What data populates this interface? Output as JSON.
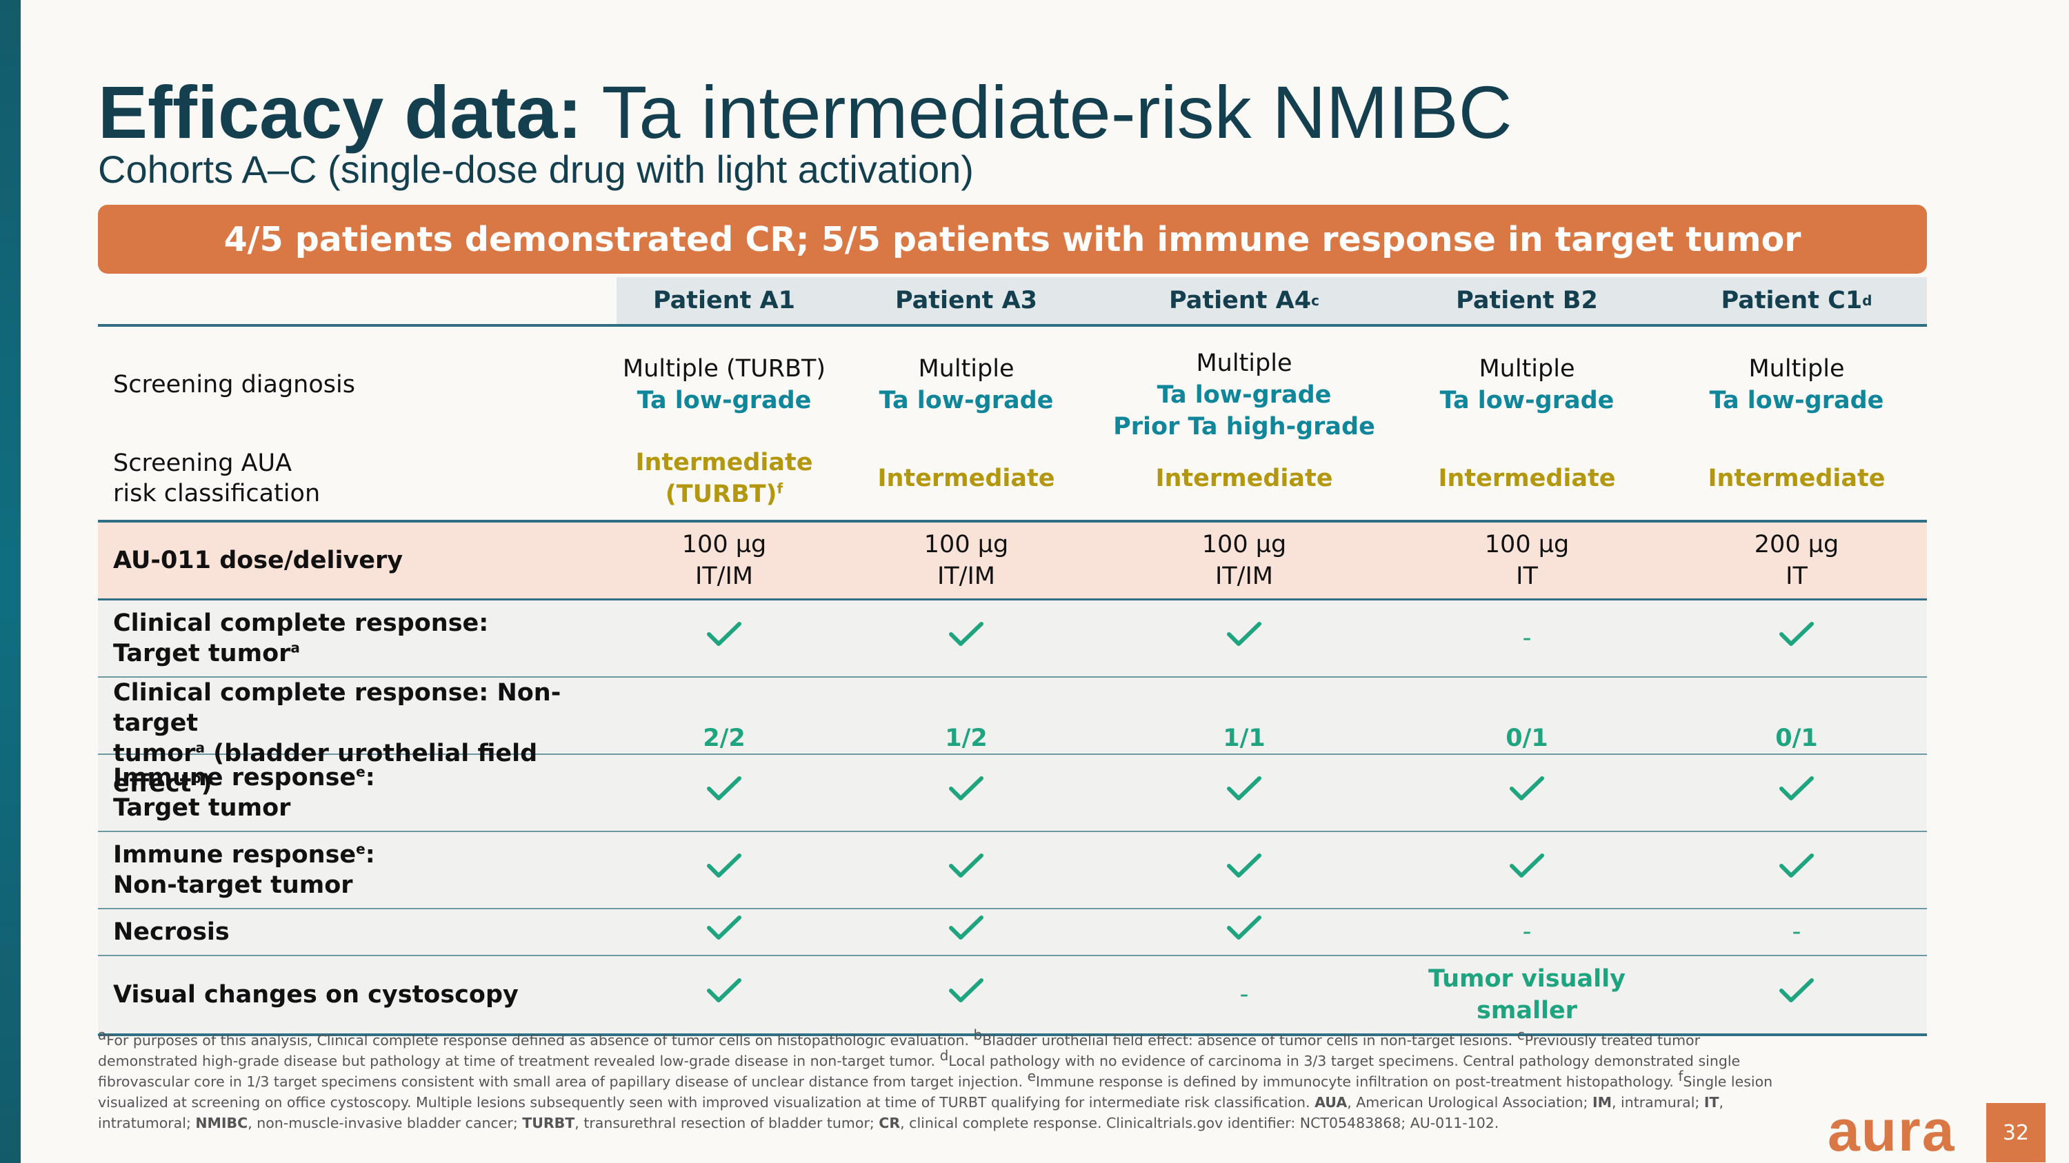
{
  "title": {
    "bold": "Efficacy data:",
    "rest": " Ta intermediate-risk NMIBC"
  },
  "subtitle": "Cohorts A–C (single-dose drug with light activation)",
  "banner": "4/5 patients demonstrated CR; 5/5 patients with immune response in target tumor",
  "patients": [
    {
      "name": "Patient A1",
      "sup": ""
    },
    {
      "name": "Patient A3",
      "sup": ""
    },
    {
      "name": "Patient A4",
      "sup": "c"
    },
    {
      "name": "Patient B2",
      "sup": ""
    },
    {
      "name": "Patient C1",
      "sup": "d"
    }
  ],
  "rows": {
    "diagnosis": {
      "label": "Screening diagnosis",
      "cells": [
        {
          "line1": "Multiple (TURBT)",
          "line2": "Ta low-grade",
          "line3": ""
        },
        {
          "line1": "Multiple",
          "line2": "Ta low-grade",
          "line3": ""
        },
        {
          "line1": "Multiple",
          "line2": "Ta low-grade",
          "line3": "Prior Ta high-grade"
        },
        {
          "line1": "Multiple",
          "line2": "Ta low-grade",
          "line3": ""
        },
        {
          "line1": "Multiple",
          "line2": "Ta low-grade",
          "line3": ""
        }
      ]
    },
    "risk": {
      "label_line1": "Screening AUA",
      "label_line2": "risk classification",
      "cells": [
        {
          "line1": "Intermediate",
          "line2": "(TURBT)",
          "sup": "f"
        },
        {
          "line1": "Intermediate",
          "line2": "",
          "sup": ""
        },
        {
          "line1": "Intermediate",
          "line2": "",
          "sup": ""
        },
        {
          "line1": "Intermediate",
          "line2": "",
          "sup": ""
        },
        {
          "line1": "Intermediate",
          "line2": "",
          "sup": ""
        }
      ]
    },
    "dose": {
      "label": "AU-011 dose/delivery",
      "cells": [
        {
          "amount": "100 µg",
          "route": "IT/IM"
        },
        {
          "amount": "100 µg",
          "route": "IT/IM"
        },
        {
          "amount": "100 µg",
          "route": "IT/IM"
        },
        {
          "amount": "100 µg",
          "route": "IT"
        },
        {
          "amount": "200 µg",
          "route": "IT"
        }
      ]
    },
    "ccr_target": {
      "label_line1": "Clinical complete response:",
      "label_line2": "Target tumor",
      "label_sup": "a",
      "cells": [
        "check",
        "check",
        "check",
        "-",
        "check"
      ]
    },
    "ccr_nontarget": {
      "label_line1": "Clinical complete response: Non-target",
      "label_line2a": "tumor",
      "label_sup1": "a",
      "label_line2b": " (bladder urothelial field effect",
      "label_sup2": "b",
      "label_line2c": ")",
      "cells": [
        "2/2",
        "1/2",
        "1/1",
        "0/1",
        "0/1"
      ]
    },
    "immune_target": {
      "label_line1": "Immune response",
      "label_sup": "e",
      "label_colon": ":",
      "label_line2": "Target tumor",
      "cells": [
        "check",
        "check",
        "check",
        "check",
        "check"
      ]
    },
    "immune_nontarget": {
      "label_line1": "Immune response",
      "label_sup": "e",
      "label_colon": ":",
      "label_line2": "Non-target tumor",
      "cells": [
        "check",
        "check",
        "check",
        "check",
        "check"
      ]
    },
    "necrosis": {
      "label": "Necrosis",
      "cells": [
        "check",
        "check",
        "check",
        "-",
        "-"
      ]
    },
    "visual": {
      "label": "Visual changes on cystoscopy",
      "cells": [
        "check",
        "check",
        "-",
        "Tumor visually smaller",
        "check"
      ],
      "b2_line1": "Tumor visually",
      "b2_line2": "smaller"
    }
  },
  "footnotes": {
    "p1_sup": "a",
    "p1": "For purposes of this analysis, Clinical complete response defined as absence of tumor cells on histopathologic evaluation. ",
    "p2_sup": "b",
    "p2": "Bladder urothelial field effect: absence of tumor cells in non-target lesions. ",
    "p3_sup": "c",
    "p3": "Previously treated tumor demonstrated high-grade disease but pathology at time of treatment revealed low-grade disease in non-target tumor. ",
    "p4_sup": "d",
    "p4": "Local pathology with no evidence of carcinoma in 3/3 target specimens.  Central pathology demonstrated single fibrovascular core in 1/3 target specimens consistent with small area of papillary disease of unclear distance from target injection.  ",
    "p5_sup": "e",
    "p5": "Immune response is defined by immunocyte infiltration on post-treatment histopathology. ",
    "p6_sup": "f",
    "p6": "Single lesion visualized at screening on office cystoscopy.  Multiple lesions subsequently seen with improved visualization at time of TURBT qualifying for intermediate risk classification. ",
    "abbr": [
      {
        "term": "AUA",
        "def": ", American Urological Association; "
      },
      {
        "term": "IM",
        "def": ", intramural; "
      },
      {
        "term": "IT",
        "def": ", intratumoral; "
      },
      {
        "term": "NMIBC",
        "def": ", non-muscle-invasive bladder cancer; "
      },
      {
        "term": "TURBT",
        "def": ", transurethral resection of bladder tumor; "
      },
      {
        "term": "CR",
        "def": ", clinical complete response. Clinicaltrials.gov identifier: NCT05483868; AU-011-102."
      }
    ]
  },
  "logo": "aura",
  "page_number": "32",
  "colors": {
    "accent_orange": "#d97844",
    "title_navy": "#133f4f",
    "teal": "#10869a",
    "gold": "#b3970f",
    "check_green": "#1fa480",
    "dose_row_bg": "#f9e3d8"
  }
}
